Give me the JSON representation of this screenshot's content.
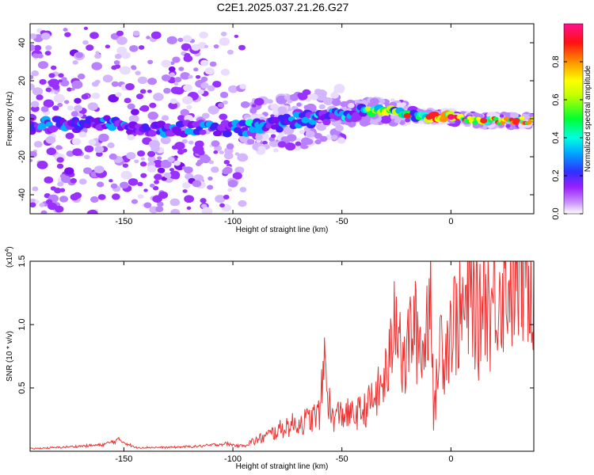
{
  "title": "C2E1.2025.037.21.26.G27",
  "chart_data": [
    {
      "type": "heatmap",
      "title": "C2E1.2025.037.21.26.G27",
      "xlabel": "Height of straight line (km)",
      "ylabel": "Frequency (Hz)",
      "xlim": [
        -193,
        38
      ],
      "ylim": [
        -50,
        50
      ],
      "xticks": [
        -150,
        -100,
        -50,
        0
      ],
      "yticks": [
        -40,
        -20,
        0,
        20,
        40
      ],
      "xtick_labels": [
        "-150",
        "-100",
        "-50",
        "0"
      ],
      "ytick_labels": [
        "-40",
        "-20",
        "0",
        "20",
        "40"
      ],
      "ridge": {
        "x": [
          -193,
          -170,
          -155,
          -140,
          -120,
          -100,
          -80,
          -60,
          -45,
          -30,
          -20,
          -10,
          0,
          10,
          20,
          38
        ],
        "y": [
          -4,
          -2,
          -2,
          -6,
          -5,
          -5,
          -3,
          1,
          3,
          5,
          2,
          1,
          1,
          -1,
          -1,
          -1
        ]
      },
      "colorbar": {
        "label": "Normalized spectral amplitude",
        "range": [
          0,
          1
        ],
        "ticks": [
          0.0,
          0.2,
          0.4,
          0.6,
          0.8
        ],
        "tick_labels": [
          "0.0",
          "0.2",
          "0.4",
          "0.6",
          "0.8"
        ],
        "colors": [
          "#ffffff",
          "#a000ff",
          "#2020ff",
          "#00e0ff",
          "#00ff40",
          "#ffff00",
          "#ff8000",
          "#ff0000",
          "#ff1090"
        ]
      }
    },
    {
      "type": "line",
      "xlabel": "Height of straight line (km)",
      "ylabel": "SNR (10 * v/v)",
      "scale_label": "(x10",
      "scale_exp": "4",
      "scale_close": ")",
      "xlim": [
        -193,
        38
      ],
      "ylim": [
        0,
        1.5
      ],
      "xticks": [
        -150,
        -100,
        -50,
        0
      ],
      "yticks": [
        0.5,
        1.0,
        1.5
      ],
      "xtick_labels": [
        "-150",
        "-100",
        "-50",
        "0"
      ],
      "ytick_labels": [
        "0.5",
        "1.0",
        "1.5"
      ],
      "color": "#ee3333",
      "series": [
        {
          "x": [
            -193,
            -180,
            -170,
            -160,
            -152,
            -145,
            -130,
            -115,
            -103,
            -97,
            -90,
            -82,
            -75,
            -70,
            -65,
            -60,
            -58,
            -55,
            -50,
            -45,
            -40,
            -35,
            -32,
            -28,
            -25,
            -22,
            -18,
            -15,
            -12,
            -9,
            -8,
            -5,
            -3,
            0,
            3,
            7,
            10,
            13,
            15,
            18,
            20,
            22,
            25,
            30,
            35,
            38
          ],
          "y": [
            0.02,
            0.03,
            0.04,
            0.05,
            0.09,
            0.03,
            0.03,
            0.04,
            0.06,
            0.04,
            0.08,
            0.14,
            0.2,
            0.22,
            0.25,
            0.3,
            0.74,
            0.26,
            0.3,
            0.28,
            0.32,
            0.42,
            0.5,
            0.7,
            1.3,
            0.6,
            1.0,
            0.9,
            0.8,
            1.5,
            0.2,
            0.9,
            0.8,
            1.0,
            1.05,
            1.1,
            1.25,
            0.95,
            1.4,
            1.1,
            1.25,
            1.3,
            1.35,
            1.38,
            1.42,
            1.4
          ]
        }
      ]
    }
  ]
}
